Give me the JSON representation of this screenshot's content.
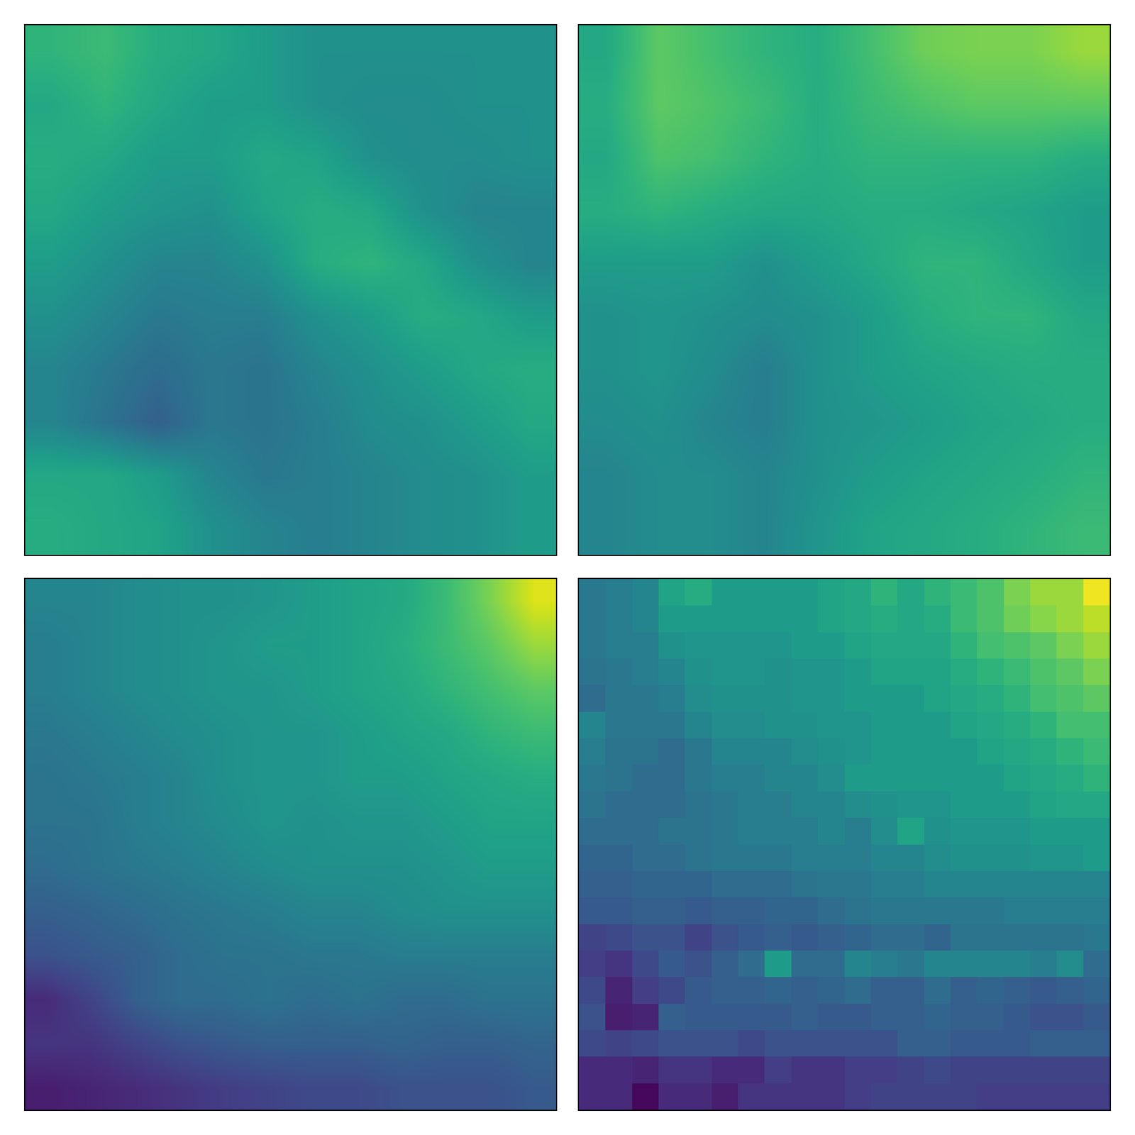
{
  "chart_data": [
    {
      "type": "heatmap",
      "tick_labels": false,
      "zlim": [
        0,
        1
      ],
      "z": [
        [
          0.65,
          0.68,
          0.62,
          0.6,
          0.55,
          0.5,
          0.5,
          0.5,
          0.5,
          0.5
        ],
        [
          0.6,
          0.65,
          0.6,
          0.55,
          0.55,
          0.5,
          0.48,
          0.48,
          0.5,
          0.5
        ],
        [
          0.62,
          0.6,
          0.55,
          0.55,
          0.6,
          0.58,
          0.5,
          0.48,
          0.48,
          0.5
        ],
        [
          0.6,
          0.55,
          0.52,
          0.5,
          0.58,
          0.62,
          0.6,
          0.5,
          0.45,
          0.45
        ],
        [
          0.55,
          0.5,
          0.45,
          0.45,
          0.5,
          0.62,
          0.65,
          0.6,
          0.5,
          0.45
        ],
        [
          0.5,
          0.45,
          0.4,
          0.42,
          0.42,
          0.5,
          0.55,
          0.62,
          0.6,
          0.55
        ],
        [
          0.45,
          0.4,
          0.35,
          0.4,
          0.38,
          0.45,
          0.5,
          0.55,
          0.6,
          0.62
        ],
        [
          0.45,
          0.38,
          0.3,
          0.4,
          0.38,
          0.42,
          0.48,
          0.5,
          0.55,
          0.6
        ],
        [
          0.6,
          0.6,
          0.55,
          0.45,
          0.4,
          0.42,
          0.45,
          0.48,
          0.5,
          0.55
        ],
        [
          0.62,
          0.6,
          0.58,
          0.5,
          0.45,
          0.42,
          0.45,
          0.48,
          0.5,
          0.55
        ]
      ]
    },
    {
      "type": "heatmap",
      "tick_labels": false,
      "zlim": [
        0,
        1
      ],
      "z": [
        [
          0.6,
          0.75,
          0.7,
          0.65,
          0.62,
          0.7,
          0.78,
          0.8,
          0.8,
          0.85
        ],
        [
          0.62,
          0.75,
          0.72,
          0.68,
          0.62,
          0.68,
          0.72,
          0.75,
          0.75,
          0.75
        ],
        [
          0.6,
          0.72,
          0.7,
          0.65,
          0.62,
          0.65,
          0.65,
          0.65,
          0.65,
          0.62
        ],
        [
          0.62,
          0.65,
          0.62,
          0.6,
          0.6,
          0.62,
          0.62,
          0.6,
          0.58,
          0.55
        ],
        [
          0.55,
          0.55,
          0.55,
          0.5,
          0.55,
          0.6,
          0.65,
          0.65,
          0.6,
          0.55
        ],
        [
          0.5,
          0.52,
          0.5,
          0.48,
          0.5,
          0.55,
          0.62,
          0.65,
          0.65,
          0.6
        ],
        [
          0.5,
          0.52,
          0.48,
          0.42,
          0.5,
          0.55,
          0.58,
          0.6,
          0.62,
          0.62
        ],
        [
          0.48,
          0.5,
          0.45,
          0.42,
          0.5,
          0.52,
          0.55,
          0.58,
          0.6,
          0.62
        ],
        [
          0.45,
          0.48,
          0.48,
          0.45,
          0.5,
          0.55,
          0.58,
          0.6,
          0.62,
          0.65
        ],
        [
          0.45,
          0.48,
          0.48,
          0.45,
          0.52,
          0.58,
          0.6,
          0.62,
          0.65,
          0.68
        ]
      ]
    },
    {
      "type": "heatmap",
      "tick_labels": false,
      "zlim": [
        0,
        1
      ],
      "z": [
        [
          0.45,
          0.45,
          0.48,
          0.5,
          0.5,
          0.52,
          0.55,
          0.58,
          0.6,
          0.68,
          0.8,
          0.95
        ],
        [
          0.42,
          0.45,
          0.48,
          0.5,
          0.52,
          0.55,
          0.55,
          0.58,
          0.62,
          0.68,
          0.75,
          0.85
        ],
        [
          0.42,
          0.45,
          0.48,
          0.5,
          0.52,
          0.52,
          0.55,
          0.58,
          0.6,
          0.65,
          0.7,
          0.75
        ],
        [
          0.4,
          0.42,
          0.45,
          0.48,
          0.5,
          0.52,
          0.52,
          0.55,
          0.58,
          0.6,
          0.65,
          0.68
        ],
        [
          0.38,
          0.4,
          0.42,
          0.45,
          0.5,
          0.52,
          0.52,
          0.55,
          0.55,
          0.58,
          0.6,
          0.62
        ],
        [
          0.38,
          0.38,
          0.42,
          0.45,
          0.48,
          0.52,
          0.5,
          0.52,
          0.52,
          0.55,
          0.58,
          0.58
        ],
        [
          0.35,
          0.38,
          0.4,
          0.42,
          0.45,
          0.48,
          0.5,
          0.5,
          0.5,
          0.52,
          0.55,
          0.55
        ],
        [
          0.3,
          0.32,
          0.35,
          0.38,
          0.4,
          0.42,
          0.45,
          0.45,
          0.48,
          0.5,
          0.5,
          0.5
        ],
        [
          0.25,
          0.28,
          0.3,
          0.35,
          0.38,
          0.38,
          0.4,
          0.4,
          0.42,
          0.42,
          0.42,
          0.42
        ],
        [
          0.12,
          0.2,
          0.3,
          0.35,
          0.35,
          0.38,
          0.35,
          0.38,
          0.35,
          0.35,
          0.38,
          0.38
        ],
        [
          0.15,
          0.15,
          0.2,
          0.25,
          0.28,
          0.3,
          0.3,
          0.3,
          0.32,
          0.3,
          0.3,
          0.32
        ],
        [
          0.08,
          0.1,
          0.12,
          0.15,
          0.18,
          0.2,
          0.22,
          0.22,
          0.25,
          0.25,
          0.25,
          0.28
        ]
      ]
    },
    {
      "type": "heatmap",
      "tick_labels": false,
      "zlim": [
        0,
        1
      ],
      "z": [
        [
          0.4,
          0.42,
          0.45,
          0.58,
          0.62,
          0.55,
          0.55,
          0.55,
          0.55,
          0.58,
          0.6,
          0.65,
          0.6,
          0.65,
          0.68,
          0.72,
          0.8,
          0.85,
          0.85,
          0.98
        ],
        [
          0.4,
          0.42,
          0.45,
          0.55,
          0.55,
          0.55,
          0.55,
          0.55,
          0.55,
          0.58,
          0.6,
          0.62,
          0.6,
          0.62,
          0.68,
          0.72,
          0.78,
          0.82,
          0.85,
          0.9
        ],
        [
          0.4,
          0.42,
          0.42,
          0.5,
          0.52,
          0.52,
          0.52,
          0.52,
          0.55,
          0.55,
          0.58,
          0.6,
          0.6,
          0.6,
          0.65,
          0.7,
          0.72,
          0.75,
          0.8,
          0.85
        ],
        [
          0.38,
          0.4,
          0.42,
          0.45,
          0.5,
          0.52,
          0.52,
          0.5,
          0.52,
          0.52,
          0.55,
          0.58,
          0.58,
          0.58,
          0.62,
          0.65,
          0.68,
          0.72,
          0.75,
          0.8
        ],
        [
          0.35,
          0.4,
          0.4,
          0.42,
          0.48,
          0.5,
          0.5,
          0.5,
          0.52,
          0.52,
          0.55,
          0.55,
          0.55,
          0.58,
          0.6,
          0.62,
          0.65,
          0.7,
          0.72,
          0.75
        ],
        [
          0.45,
          0.4,
          0.4,
          0.4,
          0.45,
          0.48,
          0.48,
          0.5,
          0.5,
          0.52,
          0.52,
          0.55,
          0.55,
          0.55,
          0.58,
          0.6,
          0.62,
          0.65,
          0.7,
          0.7
        ],
        [
          0.42,
          0.38,
          0.38,
          0.35,
          0.4,
          0.45,
          0.45,
          0.45,
          0.48,
          0.5,
          0.52,
          0.55,
          0.55,
          0.55,
          0.55,
          0.58,
          0.6,
          0.62,
          0.65,
          0.68
        ],
        [
          0.4,
          0.38,
          0.35,
          0.35,
          0.4,
          0.42,
          0.42,
          0.45,
          0.45,
          0.48,
          0.55,
          0.55,
          0.55,
          0.55,
          0.55,
          0.55,
          0.58,
          0.6,
          0.62,
          0.65
        ],
        [
          0.38,
          0.35,
          0.35,
          0.35,
          0.38,
          0.4,
          0.42,
          0.42,
          0.45,
          0.45,
          0.48,
          0.5,
          0.52,
          0.52,
          0.55,
          0.55,
          0.55,
          0.58,
          0.6,
          0.6
        ],
        [
          0.35,
          0.35,
          0.35,
          0.38,
          0.38,
          0.4,
          0.42,
          0.42,
          0.42,
          0.45,
          0.42,
          0.48,
          0.58,
          0.5,
          0.52,
          0.52,
          0.52,
          0.55,
          0.55,
          0.55
        ],
        [
          0.32,
          0.32,
          0.35,
          0.35,
          0.38,
          0.4,
          0.4,
          0.4,
          0.42,
          0.42,
          0.42,
          0.45,
          0.45,
          0.48,
          0.5,
          0.5,
          0.5,
          0.52,
          0.52,
          0.55
        ],
        [
          0.3,
          0.3,
          0.32,
          0.32,
          0.32,
          0.35,
          0.35,
          0.35,
          0.38,
          0.4,
          0.4,
          0.42,
          0.42,
          0.45,
          0.45,
          0.45,
          0.45,
          0.45,
          0.45,
          0.45
        ],
        [
          0.28,
          0.28,
          0.3,
          0.3,
          0.28,
          0.3,
          0.3,
          0.32,
          0.32,
          0.35,
          0.38,
          0.4,
          0.4,
          0.4,
          0.4,
          0.4,
          0.42,
          0.42,
          0.42,
          0.42
        ],
        [
          0.2,
          0.22,
          0.25,
          0.25,
          0.2,
          0.25,
          0.28,
          0.3,
          0.28,
          0.3,
          0.32,
          0.35,
          0.35,
          0.32,
          0.38,
          0.38,
          0.38,
          0.38,
          0.38,
          0.4
        ],
        [
          0.18,
          0.15,
          0.22,
          0.28,
          0.25,
          0.3,
          0.35,
          0.55,
          0.35,
          0.35,
          0.45,
          0.42,
          0.4,
          0.45,
          0.45,
          0.45,
          0.45,
          0.42,
          0.48,
          0.35
        ],
        [
          0.22,
          0.1,
          0.18,
          0.22,
          0.28,
          0.3,
          0.3,
          0.32,
          0.3,
          0.32,
          0.35,
          0.3,
          0.3,
          0.35,
          0.3,
          0.32,
          0.3,
          0.28,
          0.3,
          0.32
        ],
        [
          0.25,
          0.08,
          0.1,
          0.3,
          0.28,
          0.28,
          0.28,
          0.28,
          0.3,
          0.28,
          0.28,
          0.3,
          0.3,
          0.32,
          0.3,
          0.3,
          0.28,
          0.25,
          0.25,
          0.28
        ],
        [
          0.22,
          0.2,
          0.22,
          0.25,
          0.25,
          0.25,
          0.22,
          0.25,
          0.25,
          0.25,
          0.25,
          0.25,
          0.3,
          0.3,
          0.28,
          0.28,
          0.28,
          0.3,
          0.3,
          0.3
        ],
        [
          0.12,
          0.12,
          0.1,
          0.15,
          0.15,
          0.12,
          0.12,
          0.18,
          0.15,
          0.15,
          0.18,
          0.18,
          0.2,
          0.22,
          0.2,
          0.2,
          0.2,
          0.2,
          0.2,
          0.2
        ],
        [
          0.12,
          0.12,
          0.02,
          0.12,
          0.12,
          0.08,
          0.15,
          0.15,
          0.15,
          0.15,
          0.18,
          0.2,
          0.2,
          0.2,
          0.2,
          0.18,
          0.18,
          0.18,
          0.18,
          0.18
        ]
      ]
    }
  ]
}
